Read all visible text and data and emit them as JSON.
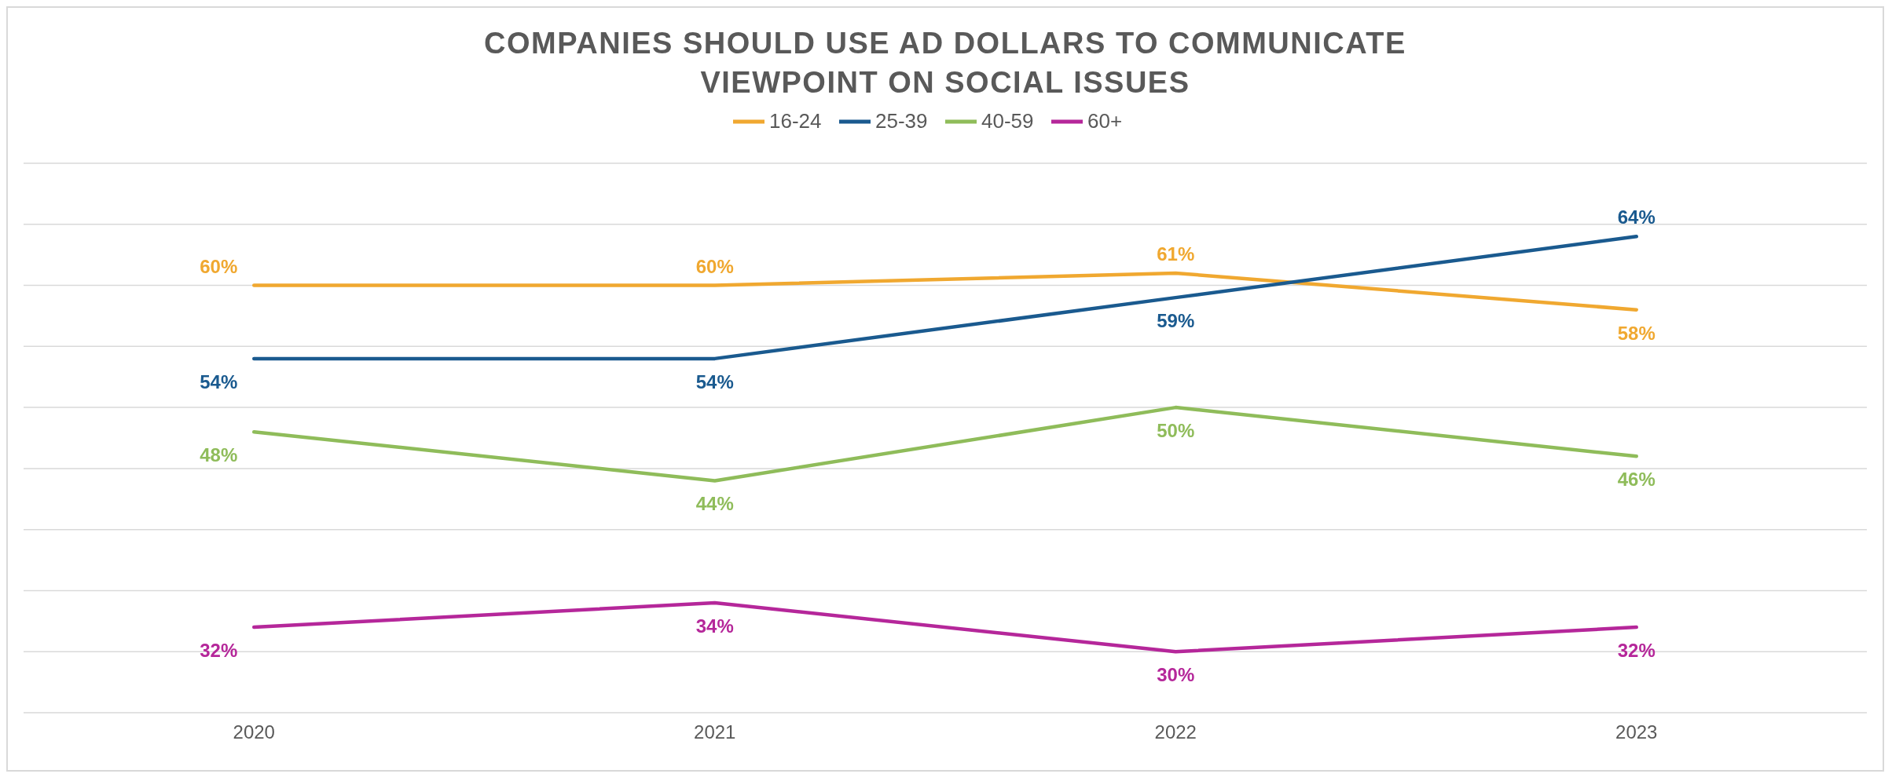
{
  "chart_data": {
    "type": "line",
    "title": "COMPANIES SHOULD USE AD DOLLARS TO COMMUNICATE VIEWPOINT ON SOCIAL ISSUES",
    "categories": [
      "2020",
      "2021",
      "2022",
      "2023"
    ],
    "series": [
      {
        "name": "16-24",
        "color": "#f0a830",
        "values": [
          60,
          60,
          61,
          58
        ],
        "value_labels": [
          "60%",
          "60%",
          "61%",
          "58%"
        ]
      },
      {
        "name": "25-39",
        "color": "#1a5a8f",
        "values": [
          54,
          54,
          59,
          64
        ],
        "value_labels": [
          "54%",
          "54%",
          "59%",
          "64%"
        ]
      },
      {
        "name": "40-59",
        "color": "#8fbc5a",
        "values": [
          48,
          44,
          50,
          46
        ],
        "value_labels": [
          "48%",
          "44%",
          "50%",
          "46%"
        ]
      },
      {
        "name": "60+",
        "color": "#b5279a",
        "values": [
          32,
          34,
          30,
          32
        ],
        "value_labels": [
          "32%",
          "34%",
          "30%",
          "32%"
        ]
      }
    ],
    "ylim": [
      25,
      70
    ],
    "yticks": [
      {
        "value": 25,
        "label": null
      },
      {
        "value": 30,
        "label": null
      },
      {
        "value": 35,
        "label": null
      },
      {
        "value": 40,
        "label": null
      },
      {
        "value": 45,
        "label": null
      },
      {
        "value": 50,
        "label": null
      },
      {
        "value": 55,
        "label": null
      },
      {
        "value": 60,
        "label": null
      },
      {
        "value": 65,
        "label": null
      },
      {
        "value": 70,
        "label": null
      }
    ],
    "grid": "y",
    "legend": "top",
    "tick_labels": "x",
    "marker": "none",
    "line_style": "solid"
  }
}
